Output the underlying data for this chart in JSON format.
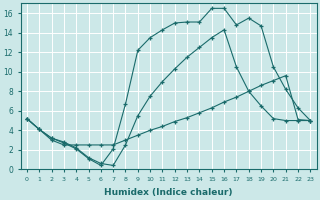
{
  "xlabel": "Humidex (Indice chaleur)",
  "bg_color": "#cce8e8",
  "grid_color": "#ffffff",
  "line_color": "#1a6b6b",
  "xlim": [
    -0.5,
    23.5
  ],
  "ylim": [
    0,
    17
  ],
  "xticks": [
    0,
    1,
    2,
    3,
    4,
    5,
    6,
    7,
    8,
    9,
    10,
    11,
    12,
    13,
    14,
    15,
    16,
    17,
    18,
    19,
    20,
    21,
    22,
    23
  ],
  "yticks": [
    0,
    2,
    4,
    6,
    8,
    10,
    12,
    14,
    16
  ],
  "line1_x": [
    0,
    1,
    2,
    3,
    4,
    5,
    6,
    7,
    8,
    9,
    10,
    11,
    12,
    13,
    14,
    15,
    16,
    17,
    18,
    19,
    20,
    21,
    22,
    23
  ],
  "line1_y": [
    5.2,
    4.1,
    3.2,
    2.7,
    2.1,
    1.1,
    0.4,
    2.1,
    6.7,
    12.2,
    13.5,
    14.3,
    15.0,
    15.1,
    15.1,
    16.5,
    16.5,
    14.8,
    15.5,
    14.7,
    10.5,
    8.2,
    6.3,
    5.0
  ],
  "line2_x": [
    0,
    1,
    2,
    3,
    4,
    5,
    6,
    7,
    8,
    9,
    10,
    11,
    12,
    13,
    14,
    15,
    16,
    17,
    18,
    19,
    20,
    21,
    22,
    23
  ],
  "line2_y": [
    5.2,
    4.1,
    3.0,
    2.5,
    2.5,
    2.5,
    2.5,
    2.5,
    3.0,
    3.5,
    4.0,
    4.4,
    4.9,
    5.3,
    5.8,
    6.3,
    6.9,
    7.4,
    8.0,
    8.6,
    9.1,
    9.6,
    5.1,
    5.0
  ],
  "line3_x": [
    0,
    1,
    2,
    3,
    4,
    5,
    6,
    7,
    8,
    9,
    10,
    11,
    12,
    13,
    14,
    15,
    16,
    17,
    18,
    19,
    20,
    21,
    22,
    23
  ],
  "line3_y": [
    5.2,
    4.1,
    3.2,
    2.8,
    2.2,
    1.2,
    0.6,
    0.4,
    2.5,
    5.5,
    7.5,
    9.0,
    10.3,
    11.5,
    12.5,
    13.5,
    14.3,
    10.5,
    8.0,
    6.5,
    5.2,
    5.0,
    5.0,
    5.0
  ]
}
